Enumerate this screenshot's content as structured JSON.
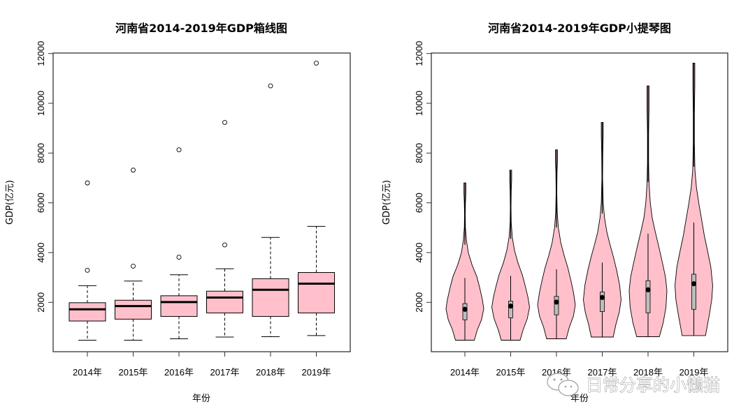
{
  "watermark": {
    "icon": "wechat-icon",
    "text": "日常分享的小懒猫"
  },
  "chart_data": [
    {
      "type": "boxplot",
      "title": "河南省2014-2019年GDP箱线图",
      "xlabel": "年份",
      "ylabel": "GDP(亿元)",
      "categories": [
        "2014年",
        "2015年",
        "2016年",
        "2017年",
        "2018年",
        "2019年"
      ],
      "yticks": [
        2000,
        4000,
        6000,
        8000,
        10000,
        12000
      ],
      "ylim": [
        0,
        12000
      ],
      "fill": "#FFC0CB",
      "boxes": [
        {
          "lower": 480,
          "q1": 1250,
          "median": 1720,
          "q3": 1985,
          "upper": 2670,
          "outliers": [
            3290,
            6800
          ]
        },
        {
          "lower": 480,
          "q1": 1325,
          "median": 1850,
          "q3": 2085,
          "upper": 2855,
          "outliers": [
            3455,
            7315
          ]
        },
        {
          "lower": 535,
          "q1": 1435,
          "median": 2010,
          "q3": 2265,
          "upper": 3110,
          "outliers": [
            3815,
            8130
          ]
        },
        {
          "lower": 605,
          "q1": 1575,
          "median": 2195,
          "q3": 2450,
          "upper": 3350,
          "outliers": [
            4310,
            9230
          ]
        },
        {
          "lower": 620,
          "q1": 1435,
          "median": 2505,
          "q3": 2950,
          "upper": 4610,
          "outliers": [
            10700
          ]
        },
        {
          "lower": 665,
          "q1": 1575,
          "median": 2750,
          "q3": 3200,
          "upper": 5055,
          "outliers": [
            11615
          ]
        }
      ]
    },
    {
      "type": "violin",
      "title": "河南省2014-2019年GDP小提琴图",
      "xlabel": "年份",
      "ylabel": "GDP(亿元)",
      "categories": [
        "2014年",
        "2015年",
        "2016年",
        "2017年",
        "2018年",
        "2019年"
      ],
      "yticks": [
        2000,
        4000,
        6000,
        8000,
        10000,
        12000
      ],
      "ylim": [
        0,
        12000
      ],
      "fill": "#FFC0CB",
      "violins": [
        {
          "min": 480,
          "max": 6800,
          "q1": 1300,
          "median": 1720,
          "q3": 1950,
          "whisker_high": 2980,
          "density": [
            [
              480,
              0.5
            ],
            [
              900,
              0.66
            ],
            [
              1300,
              0.88
            ],
            [
              1740,
              1.0
            ],
            [
              2100,
              0.93
            ],
            [
              2600,
              0.78
            ],
            [
              3040,
              0.63
            ],
            [
              3500,
              0.38
            ],
            [
              4000,
              0.18
            ],
            [
              4500,
              0.08
            ],
            [
              5000,
              0.03
            ],
            [
              5500,
              0.02
            ],
            [
              6000,
              0.03
            ],
            [
              6400,
              0.05
            ],
            [
              6800,
              0.05
            ]
          ]
        },
        {
          "min": 480,
          "max": 7315,
          "q1": 1380,
          "median": 1850,
          "q3": 2050,
          "whisker_high": 3065,
          "density": [
            [
              480,
              0.5
            ],
            [
              900,
              0.66
            ],
            [
              1350,
              0.88
            ],
            [
              1800,
              1.0
            ],
            [
              2200,
              0.92
            ],
            [
              2700,
              0.76
            ],
            [
              3100,
              0.62
            ],
            [
              3600,
              0.38
            ],
            [
              4100,
              0.2
            ],
            [
              4600,
              0.09
            ],
            [
              5200,
              0.03
            ],
            [
              5800,
              0.02
            ],
            [
              6500,
              0.03
            ],
            [
              6900,
              0.05
            ],
            [
              7315,
              0.05
            ]
          ]
        },
        {
          "min": 535,
          "max": 8130,
          "q1": 1500,
          "median": 2010,
          "q3": 2240,
          "whisker_high": 3330,
          "density": [
            [
              535,
              0.52
            ],
            [
              1000,
              0.68
            ],
            [
              1450,
              0.9
            ],
            [
              1900,
              1.0
            ],
            [
              2400,
              0.9
            ],
            [
              2900,
              0.76
            ],
            [
              3400,
              0.6
            ],
            [
              3900,
              0.4
            ],
            [
              4400,
              0.23
            ],
            [
              5000,
              0.1
            ],
            [
              5600,
              0.04
            ],
            [
              6400,
              0.02
            ],
            [
              7200,
              0.03
            ],
            [
              7700,
              0.05
            ],
            [
              8130,
              0.05
            ]
          ]
        },
        {
          "min": 605,
          "max": 9230,
          "q1": 1630,
          "median": 2195,
          "q3": 2420,
          "whisker_high": 3600,
          "density": [
            [
              605,
              0.58
            ],
            [
              1100,
              0.72
            ],
            [
              1600,
              0.9
            ],
            [
              2100,
              1.0
            ],
            [
              2700,
              0.92
            ],
            [
              3300,
              0.76
            ],
            [
              3800,
              0.6
            ],
            [
              4300,
              0.42
            ],
            [
              4800,
              0.25
            ],
            [
              5400,
              0.12
            ],
            [
              6000,
              0.05
            ],
            [
              7000,
              0.02
            ],
            [
              8000,
              0.03
            ],
            [
              8700,
              0.05
            ],
            [
              9230,
              0.05
            ]
          ]
        },
        {
          "min": 620,
          "max": 10700,
          "q1": 1580,
          "median": 2505,
          "q3": 2870,
          "whisker_high": 4760,
          "density": [
            [
              620,
              0.6
            ],
            [
              1170,
              0.8
            ],
            [
              1800,
              0.95
            ],
            [
              2480,
              1.0
            ],
            [
              3040,
              0.92
            ],
            [
              3600,
              0.76
            ],
            [
              4200,
              0.58
            ],
            [
              4840,
              0.38
            ],
            [
              5400,
              0.22
            ],
            [
              6000,
              0.12
            ],
            [
              6800,
              0.05
            ],
            [
              7600,
              0.03
            ],
            [
              8800,
              0.03
            ],
            [
              9800,
              0.05
            ],
            [
              10700,
              0.05
            ]
          ]
        },
        {
          "min": 665,
          "max": 11615,
          "q1": 1720,
          "median": 2750,
          "q3": 3130,
          "whisker_high": 5210,
          "density": [
            [
              665,
              0.62
            ],
            [
              1540,
              0.83
            ],
            [
              2100,
              0.95
            ],
            [
              2670,
              1.0
            ],
            [
              3420,
              0.9
            ],
            [
              4100,
              0.72
            ],
            [
              4700,
              0.55
            ],
            [
              5300,
              0.42
            ],
            [
              5900,
              0.28
            ],
            [
              6600,
              0.14
            ],
            [
              7300,
              0.06
            ],
            [
              8400,
              0.03
            ],
            [
              9600,
              0.03
            ],
            [
              10700,
              0.05
            ],
            [
              11615,
              0.05
            ]
          ]
        }
      ]
    }
  ]
}
